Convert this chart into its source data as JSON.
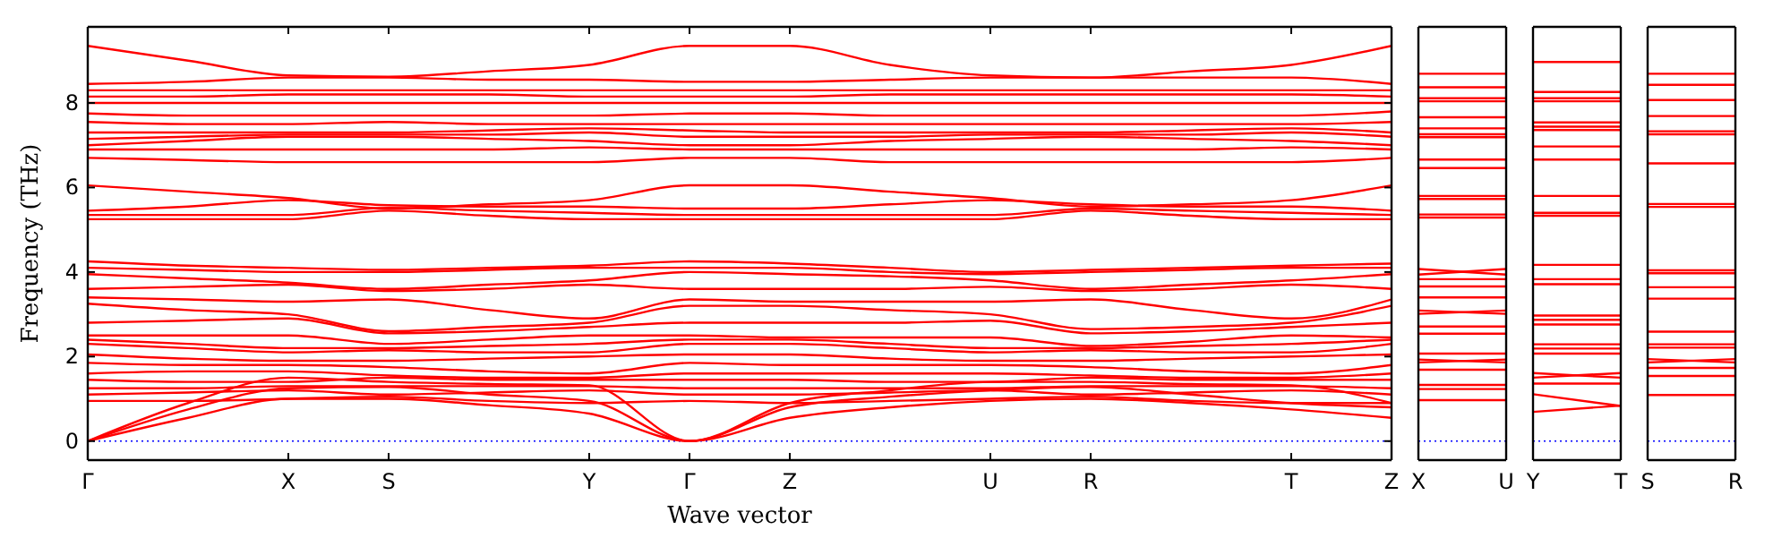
{
  "chart_data": [
    {
      "type": "line",
      "xlabel": "Wave vector",
      "ylabel": "Frequency (THz)",
      "color": "#ff0000",
      "categories": [
        "Γ",
        null,
        "X",
        "S",
        null,
        "Y",
        "Γ",
        "Z",
        null,
        "U",
        "R",
        null,
        "T",
        "Z"
      ],
      "ylim": [
        -0.45,
        9.8
      ],
      "yticks": [
        0,
        2,
        4,
        6,
        8
      ],
      "ref_lines": [
        {
          "axis": "y",
          "value": 0,
          "color": "#0000ff",
          "line_style": "dotted"
        }
      ],
      "series": [
        {
          "values": [
            9.35,
            9.0,
            8.65,
            8.62,
            8.75,
            8.9,
            9.35,
            9.35,
            8.9,
            8.65,
            8.6,
            8.75,
            8.9,
            9.35
          ]
        },
        {
          "values": [
            8.45,
            8.5,
            8.6,
            8.6,
            8.55,
            8.55,
            8.5,
            8.5,
            8.55,
            8.6,
            8.6,
            8.6,
            8.6,
            8.45
          ]
        },
        {
          "values": [
            8.3,
            8.3,
            8.3,
            8.3,
            8.3,
            8.3,
            8.3,
            8.3,
            8.3,
            8.3,
            8.3,
            8.3,
            8.3,
            8.3
          ]
        },
        {
          "values": [
            8.15,
            8.15,
            8.2,
            8.2,
            8.2,
            8.15,
            8.15,
            8.15,
            8.2,
            8.2,
            8.2,
            8.2,
            8.2,
            8.15
          ]
        },
        {
          "values": [
            8.0,
            8.0,
            8.0,
            8.0,
            8.0,
            8.0,
            8.0,
            8.0,
            8.0,
            8.0,
            8.0,
            8.0,
            8.0,
            8.0
          ]
        },
        {
          "values": [
            7.75,
            7.7,
            7.7,
            7.7,
            7.7,
            7.7,
            7.75,
            7.75,
            7.7,
            7.7,
            7.7,
            7.7,
            7.7,
            7.8
          ]
        },
        {
          "values": [
            7.55,
            7.5,
            7.5,
            7.55,
            7.5,
            7.5,
            7.5,
            7.5,
            7.5,
            7.5,
            7.5,
            7.5,
            7.5,
            7.55
          ]
        },
        {
          "values": [
            7.3,
            7.3,
            7.3,
            7.3,
            7.35,
            7.4,
            7.35,
            7.3,
            7.3,
            7.3,
            7.3,
            7.35,
            7.4,
            7.3
          ]
        },
        {
          "values": [
            7.15,
            7.2,
            7.25,
            7.25,
            7.25,
            7.3,
            7.2,
            7.2,
            7.2,
            7.25,
            7.25,
            7.25,
            7.3,
            7.2
          ]
        },
        {
          "values": [
            7.0,
            7.1,
            7.2,
            7.2,
            7.15,
            7.1,
            7.0,
            7.0,
            7.1,
            7.15,
            7.2,
            7.15,
            7.1,
            7.0
          ]
        },
        {
          "values": [
            6.9,
            6.9,
            6.9,
            6.9,
            6.9,
            6.95,
            6.9,
            6.9,
            6.9,
            6.9,
            6.9,
            6.9,
            6.95,
            6.9
          ]
        },
        {
          "values": [
            6.7,
            6.65,
            6.6,
            6.6,
            6.6,
            6.6,
            6.7,
            6.7,
            6.6,
            6.6,
            6.6,
            6.6,
            6.6,
            6.7
          ]
        },
        {
          "values": [
            6.05,
            5.9,
            5.75,
            5.5,
            5.6,
            5.7,
            6.05,
            6.05,
            5.9,
            5.75,
            5.55,
            5.6,
            5.7,
            6.05
          ]
        },
        {
          "values": [
            5.45,
            5.55,
            5.7,
            5.58,
            5.55,
            5.55,
            5.5,
            5.5,
            5.6,
            5.7,
            5.6,
            5.55,
            5.55,
            5.45
          ]
        },
        {
          "values": [
            5.35,
            5.35,
            5.35,
            5.52,
            5.45,
            5.4,
            5.35,
            5.35,
            5.35,
            5.35,
            5.5,
            5.45,
            5.4,
            5.35
          ]
        },
        {
          "values": [
            5.25,
            5.25,
            5.25,
            5.45,
            5.33,
            5.25,
            5.25,
            5.25,
            5.25,
            5.25,
            5.45,
            5.33,
            5.25,
            5.25
          ]
        },
        {
          "values": [
            4.25,
            4.15,
            4.1,
            4.05,
            4.1,
            4.15,
            4.25,
            4.2,
            4.1,
            4.0,
            4.05,
            4.1,
            4.15,
            4.2
          ]
        },
        {
          "values": [
            4.1,
            4.05,
            4.0,
            4.0,
            4.05,
            4.1,
            4.1,
            4.1,
            4.0,
            3.95,
            4.0,
            4.05,
            4.1,
            4.1
          ]
        },
        {
          "values": [
            3.95,
            3.85,
            3.75,
            3.6,
            3.7,
            3.8,
            4.0,
            3.95,
            3.9,
            3.8,
            3.6,
            3.7,
            3.8,
            3.95
          ]
        },
        {
          "values": [
            3.6,
            3.65,
            3.7,
            3.55,
            3.6,
            3.7,
            3.6,
            3.6,
            3.6,
            3.65,
            3.55,
            3.6,
            3.7,
            3.6
          ]
        },
        {
          "values": [
            3.4,
            3.35,
            3.3,
            3.35,
            3.1,
            2.9,
            3.35,
            3.3,
            3.3,
            3.3,
            3.35,
            3.1,
            2.9,
            3.35
          ]
        },
        {
          "values": [
            3.25,
            3.1,
            3.0,
            2.6,
            2.7,
            2.8,
            3.2,
            3.2,
            3.1,
            3.0,
            2.65,
            2.7,
            2.8,
            3.2
          ]
        },
        {
          "values": [
            2.8,
            2.85,
            2.9,
            2.55,
            2.6,
            2.7,
            2.8,
            2.8,
            2.8,
            2.85,
            2.55,
            2.6,
            2.7,
            2.8
          ]
        },
        {
          "values": [
            2.5,
            2.5,
            2.5,
            2.3,
            2.4,
            2.5,
            2.5,
            2.45,
            2.45,
            2.45,
            2.25,
            2.35,
            2.5,
            2.45
          ]
        },
        {
          "values": [
            2.4,
            2.3,
            2.2,
            2.2,
            2.25,
            2.3,
            2.4,
            2.4,
            2.3,
            2.2,
            2.2,
            2.25,
            2.3,
            2.4
          ]
        },
        {
          "values": [
            2.3,
            2.2,
            2.1,
            2.15,
            2.1,
            2.1,
            2.3,
            2.3,
            2.2,
            2.1,
            2.15,
            2.1,
            2.1,
            2.3
          ]
        },
        {
          "values": [
            2.05,
            1.95,
            1.9,
            1.9,
            1.95,
            2.0,
            2.05,
            2.05,
            1.95,
            1.9,
            1.9,
            1.95,
            2.0,
            2.05
          ]
        },
        {
          "values": [
            1.85,
            1.8,
            1.8,
            1.75,
            1.65,
            1.6,
            1.85,
            1.8,
            1.8,
            1.8,
            1.75,
            1.65,
            1.6,
            1.8
          ]
        },
        {
          "values": [
            1.6,
            1.65,
            1.65,
            1.55,
            1.5,
            1.5,
            1.6,
            1.6,
            1.6,
            1.6,
            1.55,
            1.5,
            1.5,
            1.6
          ]
        },
        {
          "values": [
            1.45,
            1.4,
            1.4,
            1.5,
            1.45,
            1.45,
            1.45,
            1.45,
            1.4,
            1.4,
            1.5,
            1.45,
            1.45,
            1.45
          ]
        },
        {
          "values": [
            1.25,
            1.25,
            1.3,
            1.3,
            1.3,
            1.3,
            1.25,
            1.25,
            1.25,
            1.25,
            1.3,
            1.3,
            1.3,
            1.25
          ]
        },
        {
          "values": [
            1.1,
            1.15,
            1.2,
            1.1,
            1.15,
            1.2,
            1.1,
            1.1,
            1.15,
            1.2,
            1.1,
            1.15,
            1.2,
            1.1
          ]
        },
        {
          "values": [
            0.95,
            0.95,
            1.0,
            1.05,
            0.95,
            0.9,
            0.95,
            0.9,
            0.95,
            1.0,
            1.05,
            0.95,
            0.9,
            0.9
          ]
        },
        {
          "values": [
            0,
            0.55,
            1.0,
            1.0,
            0.85,
            0.65,
            0,
            0.55,
            0.8,
            0.95,
            1.0,
            0.9,
            0.75,
            0.55
          ]
        },
        {
          "values": [
            0,
            0.75,
            1.25,
            1.28,
            1.1,
            0.95,
            0,
            0.8,
            1.05,
            1.2,
            1.28,
            1.1,
            0.9,
            0.8
          ]
        },
        {
          "values": [
            0,
            0.9,
            1.5,
            1.4,
            1.35,
            1.32,
            0,
            0.9,
            1.2,
            1.4,
            1.4,
            1.35,
            1.32,
            0.9
          ]
        }
      ]
    },
    {
      "type": "line",
      "color": "#ff0000",
      "categories": [
        "X",
        "U"
      ],
      "ylim": [
        -0.45,
        9.8
      ],
      "tick_labels": "x",
      "ref_lines": [
        {
          "axis": "y",
          "value": 0,
          "color": "#0000ff",
          "line_style": "dotted"
        }
      ],
      "series": [
        {
          "values": [
            8.69,
            8.69
          ]
        },
        {
          "values": [
            8.37,
            8.37
          ]
        },
        {
          "values": [
            8.11,
            8.11
          ]
        },
        {
          "values": [
            8.04,
            8.04
          ]
        },
        {
          "values": [
            7.66,
            7.66
          ]
        },
        {
          "values": [
            7.4,
            7.4
          ]
        },
        {
          "values": [
            7.26,
            7.26
          ]
        },
        {
          "values": [
            7.19,
            7.19
          ]
        },
        {
          "values": [
            6.66,
            6.66
          ]
        },
        {
          "values": [
            6.46,
            6.46
          ]
        },
        {
          "values": [
            5.8,
            5.8
          ]
        },
        {
          "values": [
            5.73,
            5.73
          ]
        },
        {
          "values": [
            5.36,
            5.36
          ]
        },
        {
          "values": [
            5.29,
            5.29
          ]
        },
        {
          "values": [
            4.07,
            3.94
          ]
        },
        {
          "values": [
            3.94,
            4.07
          ]
        },
        {
          "values": [
            3.83,
            3.83
          ]
        },
        {
          "values": [
            3.66,
            3.66
          ]
        },
        {
          "values": [
            3.4,
            3.4
          ]
        },
        {
          "values": [
            3.09,
            3.01
          ]
        },
        {
          "values": [
            3.01,
            3.09
          ]
        },
        {
          "values": [
            2.71,
            2.71
          ]
        },
        {
          "values": [
            2.54,
            2.54
          ]
        },
        {
          "values": [
            2.07,
            2.07
          ]
        },
        {
          "values": [
            1.93,
            1.86
          ]
        },
        {
          "values": [
            1.86,
            1.93
          ]
        },
        {
          "values": [
            1.69,
            1.69
          ]
        },
        {
          "values": [
            1.33,
            1.33
          ]
        },
        {
          "values": [
            1.23,
            1.23
          ]
        },
        {
          "values": [
            0.97,
            0.97
          ]
        }
      ]
    },
    {
      "type": "line",
      "color": "#ff0000",
      "categories": [
        "Y",
        "T"
      ],
      "ylim": [
        -0.45,
        9.8
      ],
      "tick_labels": "x",
      "ref_lines": [
        {
          "axis": "y",
          "value": 0,
          "color": "#0000ff",
          "line_style": "dotted"
        }
      ],
      "series": [
        {
          "values": [
            8.97,
            8.97
          ]
        },
        {
          "values": [
            8.26,
            8.26
          ]
        },
        {
          "values": [
            8.11,
            8.11
          ]
        },
        {
          "values": [
            8.04,
            8.04
          ]
        },
        {
          "values": [
            7.54,
            7.54
          ]
        },
        {
          "values": [
            7.44,
            7.44
          ]
        },
        {
          "values": [
            7.36,
            7.36
          ]
        },
        {
          "values": [
            6.97,
            6.97
          ]
        },
        {
          "values": [
            6.66,
            6.66
          ]
        },
        {
          "values": [
            5.8,
            5.8
          ]
        },
        {
          "values": [
            5.4,
            5.4
          ]
        },
        {
          "values": [
            5.33,
            5.33
          ]
        },
        {
          "values": [
            4.17,
            4.17
          ]
        },
        {
          "values": [
            3.83,
            3.83
          ]
        },
        {
          "values": [
            3.71,
            3.71
          ]
        },
        {
          "values": [
            2.97,
            2.97
          ]
        },
        {
          "values": [
            2.87,
            2.87
          ]
        },
        {
          "values": [
            2.76,
            2.76
          ]
        },
        {
          "values": [
            2.29,
            2.29
          ]
        },
        {
          "values": [
            2.19,
            2.19
          ]
        },
        {
          "values": [
            2.07,
            2.07
          ]
        },
        {
          "values": [
            1.61,
            1.5
          ]
        },
        {
          "values": [
            1.5,
            1.61
          ]
        },
        {
          "values": [
            1.36,
            1.36
          ]
        },
        {
          "values": [
            1.11,
            0.83
          ]
        },
        {
          "values": [
            0.69,
            0.84
          ]
        }
      ]
    },
    {
      "type": "line",
      "color": "#ff0000",
      "categories": [
        "S",
        "R"
      ],
      "ylim": [
        -0.45,
        9.8
      ],
      "tick_labels": "x",
      "ref_lines": [
        {
          "axis": "y",
          "value": 0,
          "color": "#0000ff",
          "line_style": "dotted"
        }
      ],
      "series": [
        {
          "values": [
            8.69,
            8.69
          ]
        },
        {
          "values": [
            8.43,
            8.43
          ]
        },
        {
          "values": [
            8.07,
            8.07
          ]
        },
        {
          "values": [
            7.69,
            7.69
          ]
        },
        {
          "values": [
            7.33,
            7.33
          ]
        },
        {
          "values": [
            7.26,
            7.26
          ]
        },
        {
          "values": [
            6.57,
            6.57
          ]
        },
        {
          "values": [
            5.61,
            5.61
          ]
        },
        {
          "values": [
            5.54,
            5.54
          ]
        },
        {
          "values": [
            4.04,
            4.04
          ]
        },
        {
          "values": [
            3.97,
            3.97
          ]
        },
        {
          "values": [
            3.64,
            3.64
          ]
        },
        {
          "values": [
            3.37,
            3.37
          ]
        },
        {
          "values": [
            2.59,
            2.59
          ]
        },
        {
          "values": [
            2.29,
            2.29
          ]
        },
        {
          "values": [
            2.21,
            2.21
          ]
        },
        {
          "values": [
            1.94,
            1.86
          ]
        },
        {
          "values": [
            1.86,
            1.94
          ]
        },
        {
          "values": [
            1.73,
            1.73
          ]
        },
        {
          "values": [
            1.54,
            1.54
          ]
        },
        {
          "values": [
            1.09,
            1.09
          ]
        }
      ]
    }
  ]
}
